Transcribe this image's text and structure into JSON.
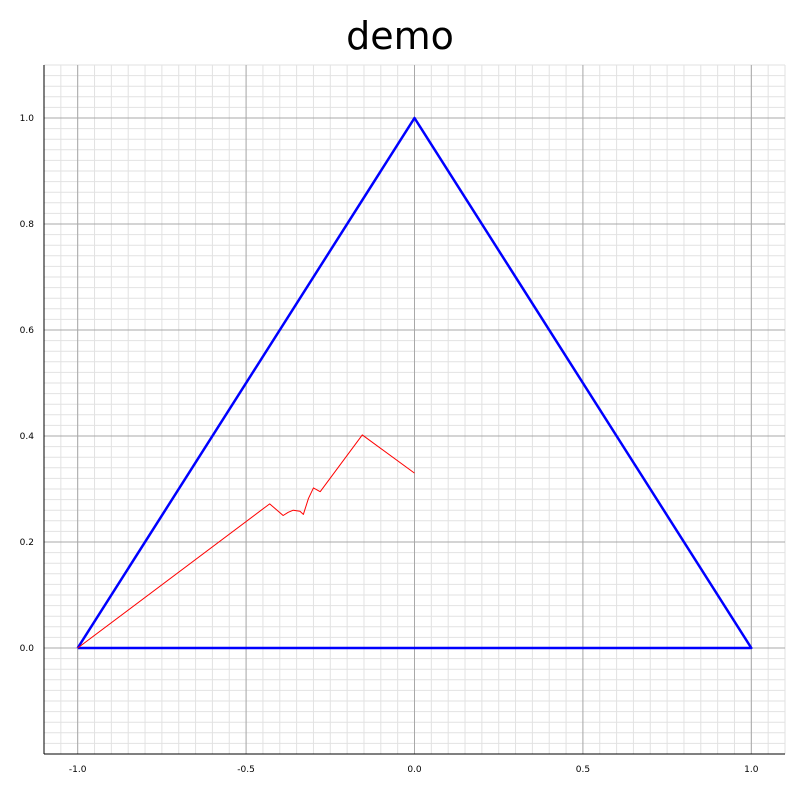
{
  "chart_data": {
    "type": "line",
    "title": "demo",
    "xlabel": "",
    "ylabel": "",
    "xlim": [
      -1.1,
      1.1
    ],
    "ylim": [
      -0.2,
      1.1
    ],
    "grid": true,
    "x_ticks": [
      "-1.0",
      "-0.5",
      "0.0",
      "0.5",
      "1.0"
    ],
    "y_ticks": [
      "0.0",
      "0.2",
      "0.4",
      "0.6",
      "0.8",
      "1.0"
    ],
    "x_tick_values": [
      -1.0,
      -0.5,
      0.0,
      0.5,
      1.0
    ],
    "y_tick_values": [
      0.0,
      0.2,
      0.4,
      0.6,
      0.8,
      1.0
    ],
    "series": [
      {
        "color": "#0000ff",
        "points": [
          [
            -1.0,
            0.0
          ],
          [
            0.0,
            1.0
          ],
          [
            1.0,
            0.0
          ],
          [
            -1.0,
            0.0
          ]
        ]
      },
      {
        "color": "#ff0000",
        "points": [
          [
            0.0,
            0.33
          ],
          [
            -0.155,
            0.402
          ],
          [
            -0.28,
            0.295
          ],
          [
            -0.3,
            0.302
          ],
          [
            -0.315,
            0.282
          ],
          [
            -0.32,
            0.272
          ],
          [
            -0.325,
            0.262
          ],
          [
            -0.33,
            0.252
          ],
          [
            -0.34,
            0.258
          ],
          [
            -0.36,
            0.26
          ],
          [
            -0.375,
            0.256
          ],
          [
            -0.39,
            0.25
          ],
          [
            -0.43,
            0.272
          ],
          [
            -1.0,
            0.0
          ]
        ]
      }
    ]
  }
}
